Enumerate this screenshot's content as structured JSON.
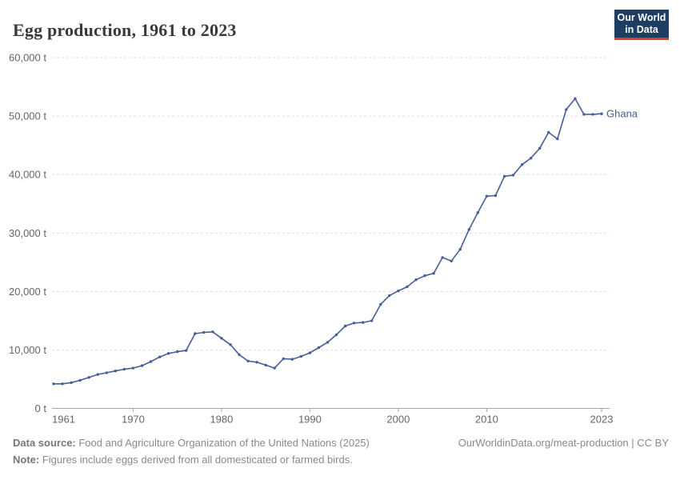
{
  "header": {
    "title": "Egg production, 1961 to 2023"
  },
  "logo": {
    "line1": "Our World",
    "line2": "in Data",
    "bg_color": "#1d3d63",
    "bar_color": "#dc3b2e"
  },
  "chart_data": {
    "type": "line",
    "title": "Egg production, 1961 to 2023",
    "xlabel": "",
    "ylabel": "",
    "unit": "t",
    "xlim": [
      1961,
      2023
    ],
    "ylim": [
      0,
      60000
    ],
    "grid": "horizontal-dashed",
    "legend_position": "end-of-line-label",
    "line_color": "#465f96",
    "axis_color": "#a5a5a5",
    "tick_label_color": "#666666",
    "grid_color": "#dedede",
    "yticks": [
      {
        "value": 0,
        "label": "0 t"
      },
      {
        "value": 10000,
        "label": "10,000 t"
      },
      {
        "value": 20000,
        "label": "20,000 t"
      },
      {
        "value": 30000,
        "label": "30,000 t"
      },
      {
        "value": 40000,
        "label": "40,000 t"
      },
      {
        "value": 50000,
        "label": "50,000 t"
      },
      {
        "value": 60000,
        "label": "60,000 t"
      }
    ],
    "xticks": [
      {
        "year": 1961,
        "label": "1961"
      },
      {
        "year": 1970,
        "label": "1970"
      },
      {
        "year": 1980,
        "label": "1980"
      },
      {
        "year": 1990,
        "label": "1990"
      },
      {
        "year": 2000,
        "label": "2000"
      },
      {
        "year": 2010,
        "label": "2010"
      },
      {
        "year": 2023,
        "label": "2023"
      }
    ],
    "series": [
      {
        "name": "Ghana",
        "color": "#465f96",
        "x": [
          1961,
          1962,
          1963,
          1964,
          1965,
          1966,
          1967,
          1968,
          1969,
          1970,
          1971,
          1972,
          1973,
          1974,
          1975,
          1976,
          1977,
          1978,
          1979,
          1980,
          1981,
          1982,
          1983,
          1984,
          1985,
          1986,
          1987,
          1988,
          1989,
          1990,
          1991,
          1992,
          1993,
          1994,
          1995,
          1996,
          1997,
          1998,
          1999,
          2000,
          2001,
          2002,
          2003,
          2004,
          2005,
          2006,
          2007,
          2008,
          2009,
          2010,
          2011,
          2012,
          2013,
          2014,
          2015,
          2016,
          2017,
          2018,
          2019,
          2020,
          2021,
          2022,
          2023
        ],
        "values": [
          4200,
          4200,
          4400,
          4800,
          5300,
          5800,
          6100,
          6400,
          6700,
          6900,
          7300,
          8000,
          8800,
          9400,
          9700,
          9900,
          12800,
          13000,
          13100,
          12000,
          10900,
          9200,
          8100,
          7900,
          7400,
          6900,
          8500,
          8400,
          8900,
          9500,
          10400,
          11300,
          12600,
          14100,
          14600,
          14700,
          15000,
          17800,
          19300,
          20100,
          20800,
          22000,
          22700,
          23100,
          25800,
          25200,
          27200,
          30600,
          33500,
          36300,
          36400,
          39700,
          39900,
          41700,
          42800,
          44500,
          47200,
          46100,
          51100,
          53000,
          50300,
          50300,
          50400
        ]
      }
    ]
  },
  "footer": {
    "source_label": "Data source:",
    "source_text": " Food and Agriculture Organization of the United Nations (2025)",
    "note_label": "Note:",
    "note_text": " Figures include eggs derived from all domesticated or farmed birds.",
    "credit": "OurWorldinData.org/meat-production | CC BY"
  }
}
